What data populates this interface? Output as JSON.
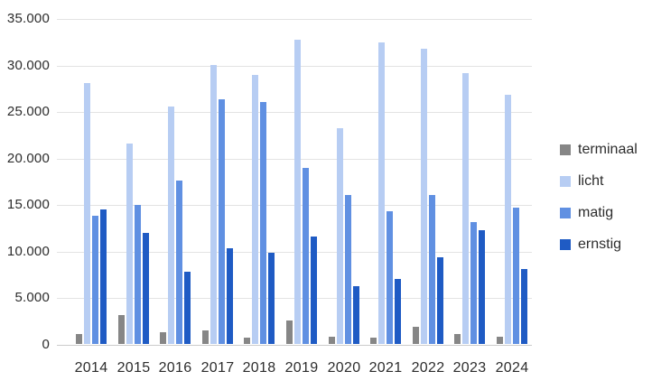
{
  "chart_data": {
    "type": "bar",
    "title": "",
    "categories": [
      "2014",
      "2015",
      "2016",
      "2017",
      "2018",
      "2019",
      "2020",
      "2021",
      "2022",
      "2023",
      "2024"
    ],
    "series": [
      {
        "name": "terminaal",
        "color": "#868686",
        "values": [
          1100,
          3100,
          1300,
          1500,
          700,
          2500,
          800,
          700,
          1800,
          1100,
          800
        ]
      },
      {
        "name": "licht",
        "color": "#b7cdf3",
        "values": [
          28000,
          21500,
          25500,
          30000,
          28900,
          32700,
          23200,
          32400,
          31700,
          29100,
          26800
        ]
      },
      {
        "name": "matig",
        "color": "#6090e2",
        "values": [
          13800,
          14900,
          17500,
          26300,
          26000,
          18900,
          16000,
          14300,
          16000,
          13100,
          14600
        ]
      },
      {
        "name": "ernstig",
        "color": "#1f5bc4",
        "values": [
          14400,
          11900,
          7800,
          10300,
          9800,
          11500,
          6200,
          7000,
          9300,
          12200,
          8000
        ]
      }
    ],
    "ylim": [
      0,
      35000
    ],
    "ytick_step": 5000,
    "ytick_labels": [
      "0",
      "5.000",
      "10.000",
      "15.000",
      "20.000",
      "25.000",
      "30.000",
      "35.000"
    ],
    "xlabel": "",
    "ylabel": "",
    "grid": "horizontal",
    "legend_position": "right"
  },
  "colors": {
    "gridline": "#e3e3e3",
    "axis_line": "#cccccc",
    "text": "#2d2d2d",
    "background": "#ffffff"
  }
}
